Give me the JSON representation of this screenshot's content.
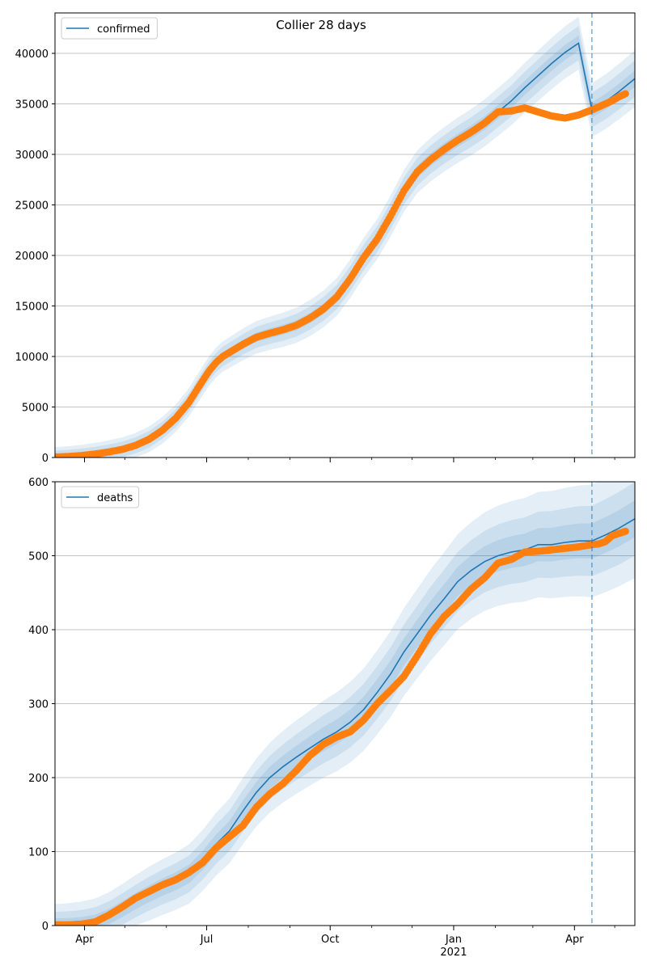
{
  "chart_data": [
    {
      "type": "line",
      "title": "Collier 28 days",
      "legend": {
        "label": "confirmed",
        "location": "top-left"
      },
      "colors": {
        "model": "#1f77b4",
        "observed": "#ff7f0e",
        "band": "#1f77b4",
        "grid": "#b0b0b0"
      },
      "x_range_days": [
        0,
        432
      ],
      "x_origin_date": "2020-03-10",
      "forecast_start_day": 400,
      "ylim": [
        0,
        44000
      ],
      "yticks": [
        0,
        5000,
        10000,
        15000,
        20000,
        25000,
        30000,
        35000,
        40000
      ],
      "ytick_labels": [
        "0",
        "5000",
        "10000",
        "15000",
        "20000",
        "25000",
        "30000",
        "35000",
        "40000"
      ],
      "grid": "horizontal",
      "model_curve": {
        "days": [
          0,
          10,
          20,
          30,
          40,
          50,
          60,
          70,
          80,
          90,
          100,
          110,
          115,
          120,
          125,
          130,
          135,
          140,
          145,
          150,
          160,
          170,
          180,
          190,
          200,
          210,
          220,
          230,
          240,
          250,
          260,
          270,
          280,
          290,
          300,
          310,
          320,
          330,
          340,
          350,
          360,
          370,
          380,
          390,
          400,
          410,
          420,
          432
        ],
        "values": [
          50,
          100,
          200,
          350,
          550,
          800,
          1200,
          1800,
          2700,
          3900,
          5500,
          7600,
          8600,
          9400,
          10000,
          10400,
          10800,
          11200,
          11550,
          11900,
          12300,
          12650,
          13100,
          13800,
          14700,
          15900,
          17700,
          19800,
          21600,
          23900,
          26400,
          28300,
          29500,
          30500,
          31400,
          32200,
          33100,
          34200,
          35300,
          36600,
          37800,
          39000,
          40100,
          41000,
          34400,
          35200,
          36200,
          37500
        ]
      },
      "band_widths": [
        2800,
        1800,
        800
      ],
      "observed": {
        "days": [
          0,
          10,
          20,
          30,
          40,
          50,
          60,
          70,
          80,
          90,
          100,
          110,
          115,
          120,
          125,
          130,
          135,
          140,
          145,
          150,
          160,
          170,
          180,
          190,
          200,
          210,
          220,
          230,
          240,
          250,
          260,
          270,
          280,
          290,
          300,
          310,
          320,
          330,
          340,
          350,
          360,
          370,
          380,
          390,
          400,
          405,
          410,
          415,
          420,
          425
        ],
        "values": [
          50,
          100,
          200,
          350,
          550,
          800,
          1200,
          1800,
          2700,
          3900,
          5500,
          7600,
          8600,
          9400,
          10000,
          10400,
          10800,
          11200,
          11550,
          11900,
          12300,
          12650,
          13100,
          13800,
          14700,
          15900,
          17700,
          19800,
          21600,
          23900,
          26400,
          28300,
          29500,
          30500,
          31400,
          32200,
          33100,
          34200,
          34300,
          34600,
          34200,
          33800,
          33600,
          33900,
          34400,
          34700,
          35000,
          35300,
          35700,
          36000
        ]
      },
      "xticks": [],
      "xtick_labels": []
    },
    {
      "type": "line",
      "title": "",
      "legend": {
        "label": "deaths",
        "location": "top-left"
      },
      "colors": {
        "model": "#1f77b4",
        "observed": "#ff7f0e",
        "band": "#1f77b4",
        "grid": "#b0b0b0"
      },
      "x_range_days": [
        0,
        432
      ],
      "x_origin_date": "2020-03-10",
      "forecast_start_day": 400,
      "ylim": [
        0,
        600
      ],
      "yticks": [
        0,
        100,
        200,
        300,
        400,
        500,
        600
      ],
      "ytick_labels": [
        "0",
        "100",
        "200",
        "300",
        "400",
        "500",
        "600"
      ],
      "grid": "horizontal",
      "model_curve": {
        "days": [
          0,
          10,
          20,
          30,
          40,
          50,
          60,
          70,
          80,
          90,
          100,
          110,
          120,
          130,
          140,
          150,
          160,
          170,
          180,
          190,
          200,
          210,
          220,
          230,
          240,
          250,
          260,
          270,
          280,
          290,
          300,
          310,
          320,
          330,
          340,
          350,
          360,
          370,
          380,
          390,
          400,
          410,
          420,
          432
        ],
        "values": [
          1,
          1,
          2,
          5,
          12,
          22,
          33,
          43,
          52,
          60,
          70,
          88,
          110,
          128,
          155,
          180,
          200,
          215,
          228,
          240,
          252,
          262,
          275,
          292,
          315,
          340,
          370,
          395,
          420,
          442,
          465,
          480,
          492,
          500,
          505,
          508,
          515,
          515,
          518,
          520,
          520,
          528,
          537,
          550
        ]
      },
      "band_widths": [
        80,
        50,
        25
      ],
      "observed": {
        "days": [
          0,
          10,
          20,
          30,
          40,
          50,
          60,
          70,
          80,
          90,
          100,
          110,
          120,
          130,
          140,
          150,
          160,
          170,
          180,
          190,
          200,
          210,
          220,
          230,
          240,
          250,
          260,
          270,
          280,
          290,
          300,
          310,
          320,
          330,
          340,
          350,
          360,
          370,
          380,
          390,
          400,
          405,
          410,
          415,
          420,
          425
        ],
        "values": [
          1,
          1,
          2,
          5,
          14,
          25,
          37,
          46,
          55,
          62,
          72,
          85,
          105,
          120,
          135,
          160,
          178,
          192,
          210,
          230,
          245,
          255,
          262,
          278,
          300,
          318,
          337,
          365,
          395,
          418,
          435,
          455,
          470,
          490,
          495,
          505,
          506,
          508,
          510,
          512,
          515,
          516,
          519,
          527,
          530,
          533
        ]
      },
      "xticks": [
        22,
        113,
        205,
        297,
        387
      ],
      "xtick_labels": [
        "Apr",
        "Jul",
        "Oct",
        "Jan",
        "Apr"
      ],
      "xtick_sublabels": [
        "",
        "",
        "",
        "2021",
        ""
      ]
    }
  ]
}
